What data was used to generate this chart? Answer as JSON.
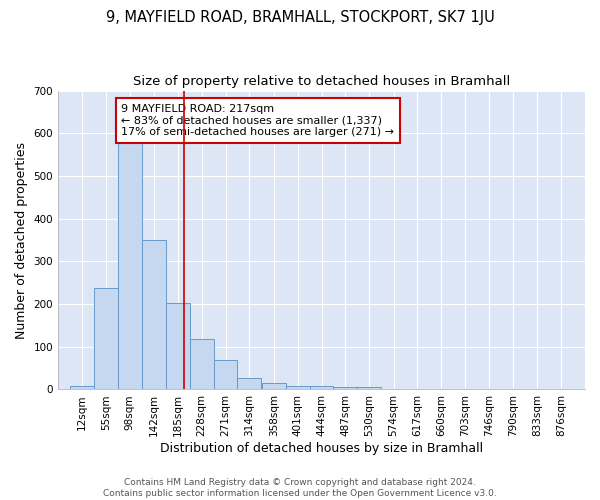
{
  "title": "9, MAYFIELD ROAD, BRAMHALL, STOCKPORT, SK7 1JU",
  "subtitle": "Size of property relative to detached houses in Bramhall",
  "xlabel": "Distribution of detached houses by size in Bramhall",
  "ylabel": "Number of detached properties",
  "footer_line1": "Contains HM Land Registry data © Crown copyright and database right 2024.",
  "footer_line2": "Contains public sector information licensed under the Open Government Licence v3.0.",
  "bin_starts": [
    12,
    55,
    98,
    142,
    185,
    228,
    271,
    314,
    358,
    401,
    444,
    487,
    530,
    574,
    617,
    660,
    703,
    746,
    790,
    833
  ],
  "bin_width": 43,
  "bar_labels": [
    "12sqm",
    "55sqm",
    "98sqm",
    "142sqm",
    "185sqm",
    "228sqm",
    "271sqm",
    "314sqm",
    "358sqm",
    "401sqm",
    "444sqm",
    "487sqm",
    "530sqm",
    "574sqm",
    "617sqm",
    "660sqm",
    "703sqm",
    "746sqm",
    "790sqm",
    "833sqm",
    "876sqm"
  ],
  "bar_heights": [
    7,
    237,
    590,
    350,
    203,
    118,
    70,
    27,
    15,
    8,
    8,
    5,
    5,
    0,
    0,
    0,
    0,
    0,
    0,
    0
  ],
  "bar_color": "#c5d8f0",
  "bar_edge_color": "#6699cc",
  "vline_x": 217,
  "vline_color": "#cc0000",
  "annotation_text": "9 MAYFIELD ROAD: 217sqm\n← 83% of detached houses are smaller (1,337)\n17% of semi-detached houses are larger (271) →",
  "annotation_box_facecolor": "#ffffff",
  "annotation_box_edgecolor": "#cc0000",
  "ylim": [
    0,
    700
  ],
  "yticks": [
    0,
    100,
    200,
    300,
    400,
    500,
    600,
    700
  ],
  "fig_bg_color": "#ffffff",
  "plot_bg_color": "#dce6f5",
  "grid_color": "#ffffff",
  "title_fontsize": 10.5,
  "subtitle_fontsize": 9.5,
  "axis_label_fontsize": 9,
  "tick_fontsize": 7.5,
  "footer_fontsize": 6.5,
  "annotation_fontsize": 8
}
